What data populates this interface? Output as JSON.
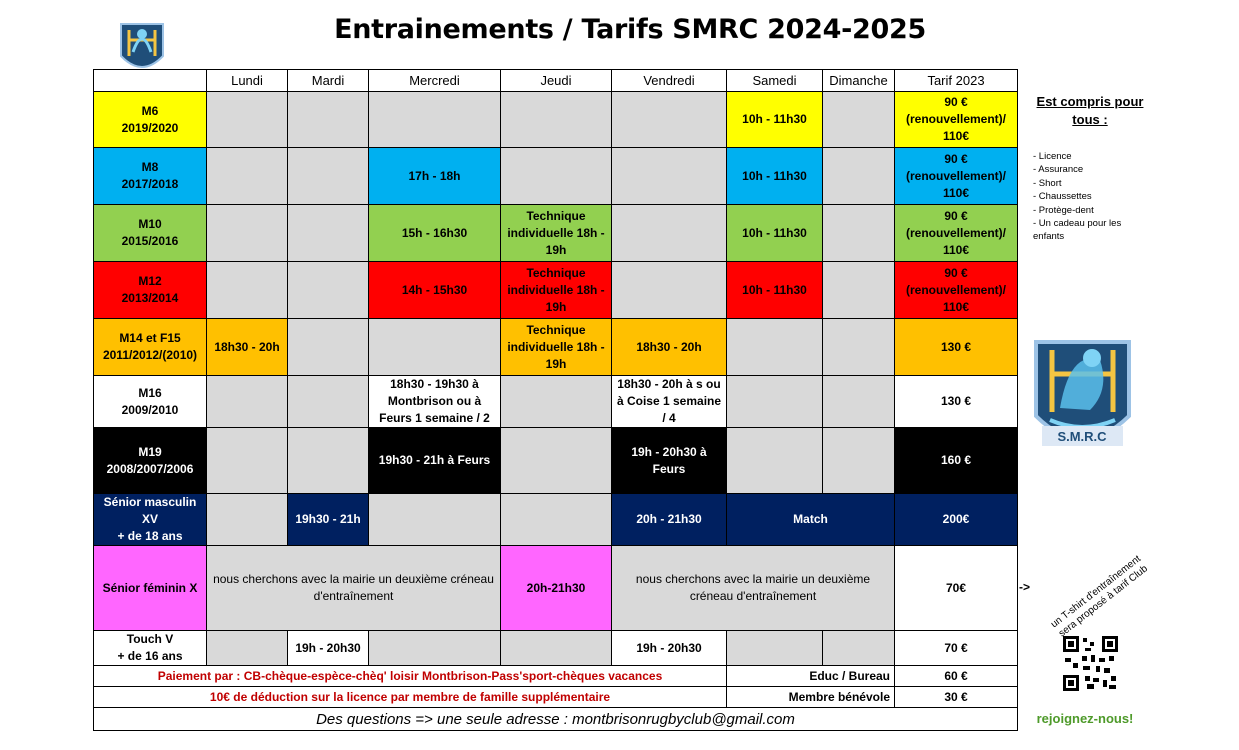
{
  "title": "Entrainements / Tarifs SMRC 2024-2025",
  "logo_text": "S.M.R.C",
  "days": [
    "Lundi",
    "Mardi",
    "Mercredi",
    "Jeudi",
    "Vendredi",
    "Samedi",
    "Dimanche",
    "Tarif 2023"
  ],
  "rows": {
    "m6": {
      "cat": "M6",
      "years": "2019/2020",
      "sam": "10h - 11h30",
      "tarif": "90 € (renouvellement)/ 110€"
    },
    "m8": {
      "cat": "M8",
      "years": "2017/2018",
      "mer": "17h - 18h",
      "sam": "10h - 11h30",
      "tarif": "90 € (renouvellement)/ 110€"
    },
    "m10": {
      "cat": "M10",
      "years": "2015/2016",
      "mer": "15h - 16h30",
      "jeu": "Technique individuelle 18h - 19h",
      "sam": "10h - 11h30",
      "tarif": "90 € (renouvellement)/ 110€"
    },
    "m12": {
      "cat": "M12",
      "years": "2013/2014",
      "mer": "14h - 15h30",
      "jeu": "Technique individuelle 18h - 19h",
      "sam": "10h - 11h30",
      "tarif": "90 € (renouvellement)/ 110€"
    },
    "m14": {
      "cat": "M14 et F15",
      "years": "2011/2012/(2010)",
      "lun": "18h30 - 20h",
      "jeu": "Technique individuelle 18h - 19h",
      "ven": "18h30 - 20h",
      "tarif": "130 €"
    },
    "m16": {
      "cat": "M16",
      "years": "2009/2010",
      "mer": "18h30 - 19h30 à Montbrison ou à Feurs 1 semaine / 2",
      "ven": "18h30 - 20h à s ou à Coise 1 semaine / 4",
      "tarif": "130 €"
    },
    "m19": {
      "cat": "M19",
      "years": "2008/2007/2006",
      "mer": "19h30 - 21h à Feurs",
      "ven": "19h - 20h30 à Feurs",
      "tarif": "160 €"
    },
    "senior_m": {
      "cat": "Sénior masculin XV",
      "years": "+ de 18 ans",
      "mar": "19h30 - 21h",
      "ven": "20h - 21h30",
      "match": "Match",
      "tarif": "200€"
    },
    "senior_f": {
      "cat": "Sénior féminin X",
      "left_note": "nous cherchons avec la mairie un deuxième créneau d'entraînement",
      "jeu": "20h-21h30",
      "right_note": "nous cherchons avec la mairie un deuxième créneau d'entraînement",
      "tarif": "70€"
    },
    "touch": {
      "cat": "Touch V",
      "years": "+ de 16 ans",
      "mar": "19h - 20h30",
      "ven": "19h - 20h30",
      "tarif": "70 €"
    }
  },
  "payment": "Paiement par : CB-chèque-espèce-chèq' loisir Montbrison-Pass'sport-chèques vacances",
  "deduction": "10€ de déduction sur la licence par membre de famille supplémentaire",
  "educ_label": "Educ / Bureau",
  "educ_price": "60 €",
  "membre_label": "Membre bénévole",
  "membre_price": "30 €",
  "questions": "Des questions => une seule adresse : montbrisonrugbyclub@gmail.com",
  "side": {
    "title": "Est compris pour tous :",
    "items": [
      "- Licence",
      "- Assurance",
      "- Short",
      "- Chaussettes",
      "- Protège-dent",
      "- Un cadeau pour les enfants"
    ],
    "arrow": "->",
    "tshirt_note": "un T-shirt d'entraînement sera proposé à tarif Club",
    "join": "rejoignez-nous!"
  },
  "colors": {
    "yellow": "#ffff00",
    "blue": "#00b0f0",
    "green": "#92d050",
    "red": "#ff0000",
    "orange": "#ffc000",
    "black": "#000000",
    "navy": "#002060",
    "pink": "#ff66ff",
    "grey": "#d9d9d9"
  }
}
